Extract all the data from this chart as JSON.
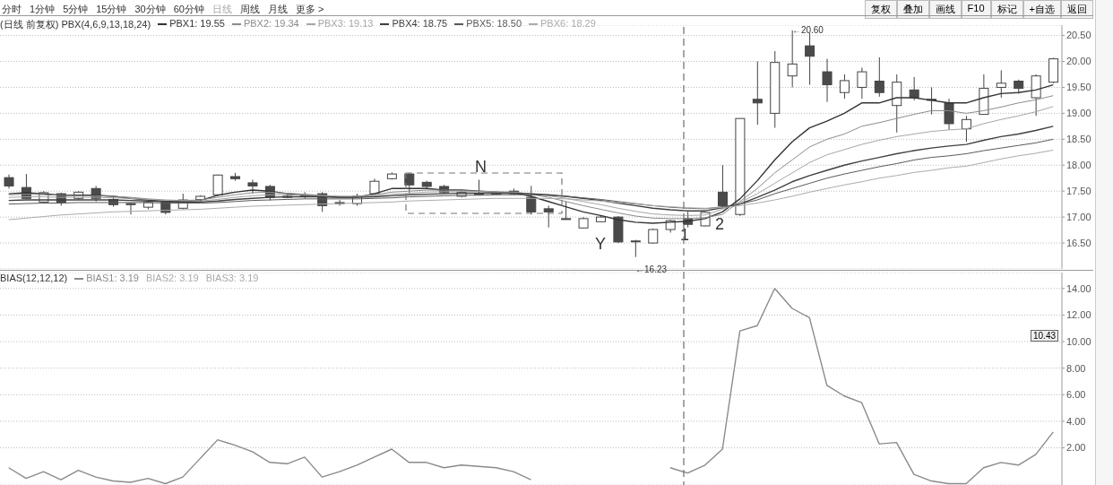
{
  "chart_data": [
    {
      "type": "candlestick",
      "title": "(日线 前复权) PBX(4,6,9,13,18,24)",
      "categories": [
        null,
        null,
        null,
        null,
        null,
        null,
        null,
        null,
        null,
        null,
        null,
        null,
        null,
        null,
        null,
        null,
        null,
        null,
        null,
        null,
        null,
        null,
        null,
        null,
        null,
        null,
        null,
        null,
        null,
        null,
        null,
        null,
        null,
        null,
        null,
        null,
        null,
        null,
        null,
        null,
        null,
        null,
        null,
        null,
        null,
        null,
        null,
        null,
        null,
        null,
        null,
        null,
        null,
        null,
        null,
        null,
        null,
        null,
        null,
        null,
        null
      ],
      "ohlc": [
        [
          17.76,
          17.82,
          17.55,
          17.6
        ],
        [
          17.57,
          17.83,
          17.36,
          17.36
        ],
        [
          17.29,
          17.5,
          17.26,
          17.47
        ],
        [
          17.45,
          17.47,
          17.22,
          17.28
        ],
        [
          17.36,
          17.5,
          17.33,
          17.48
        ],
        [
          17.55,
          17.6,
          17.3,
          17.36
        ],
        [
          17.34,
          17.38,
          17.2,
          17.24
        ],
        [
          17.26,
          17.28,
          17.05,
          17.24
        ],
        [
          17.19,
          17.3,
          17.15,
          17.28
        ],
        [
          17.29,
          17.31,
          17.05,
          17.09
        ],
        [
          17.17,
          17.45,
          17.15,
          17.33
        ],
        [
          17.34,
          17.42,
          17.3,
          17.4
        ],
        [
          17.43,
          17.82,
          17.4,
          17.81
        ],
        [
          17.78,
          17.85,
          17.7,
          17.74
        ],
        [
          17.66,
          17.72,
          17.45,
          17.6
        ],
        [
          17.59,
          17.62,
          17.32,
          17.38
        ],
        [
          17.4,
          17.45,
          17.36,
          17.38
        ],
        [
          17.41,
          17.48,
          17.36,
          17.41
        ],
        [
          17.45,
          17.48,
          17.1,
          17.22
        ],
        [
          17.28,
          17.33,
          17.22,
          17.26
        ],
        [
          17.26,
          17.45,
          17.22,
          17.4
        ],
        [
          17.45,
          17.74,
          17.43,
          17.69
        ],
        [
          17.74,
          17.86,
          17.72,
          17.83
        ],
        [
          17.83,
          17.85,
          17.45,
          17.62
        ],
        [
          17.67,
          17.7,
          17.55,
          17.59
        ],
        [
          17.59,
          17.62,
          17.45,
          17.47
        ],
        [
          17.4,
          17.5,
          17.38,
          17.48
        ],
        [
          17.45,
          17.72,
          17.43,
          17.45
        ],
        [
          17.44,
          17.5,
          17.42,
          17.47
        ],
        [
          17.5,
          17.55,
          17.43,
          17.45
        ],
        [
          17.38,
          17.6,
          17.05,
          17.1
        ],
        [
          17.16,
          17.22,
          16.8,
          17.1
        ],
        [
          16.97,
          17.3,
          16.95,
          16.97
        ],
        [
          16.79,
          17.0,
          16.78,
          16.97
        ],
        [
          16.91,
          17.02,
          16.9,
          17.0
        ],
        [
          17.0,
          17.02,
          16.5,
          16.52
        ],
        [
          16.54,
          16.56,
          16.23,
          16.54
        ],
        [
          16.5,
          16.78,
          16.49,
          16.76
        ],
        [
          16.76,
          16.95,
          16.7,
          16.93
        ],
        [
          16.97,
          17.1,
          16.8,
          16.86
        ],
        [
          16.83,
          17.1,
          16.82,
          17.09
        ],
        [
          17.48,
          18.0,
          17.2,
          17.22
        ],
        [
          17.05,
          18.9,
          17.02,
          18.9
        ],
        [
          19.27,
          20.0,
          18.78,
          19.2
        ],
        [
          19.0,
          20.2,
          18.72,
          19.98
        ],
        [
          19.72,
          20.6,
          19.5,
          19.95
        ],
        [
          20.3,
          20.55,
          19.55,
          20.1
        ],
        [
          19.8,
          20.05,
          19.22,
          19.55
        ],
        [
          19.4,
          19.75,
          19.28,
          19.63
        ],
        [
          19.5,
          19.88,
          19.28,
          19.8
        ],
        [
          19.62,
          20.08,
          19.32,
          19.4
        ],
        [
          19.15,
          19.75,
          18.63,
          19.6
        ],
        [
          19.45,
          19.7,
          19.25,
          19.3
        ],
        [
          19.27,
          19.5,
          18.98,
          19.25
        ],
        [
          19.2,
          19.28,
          18.68,
          18.8
        ],
        [
          18.7,
          18.95,
          18.45,
          18.88
        ],
        [
          18.98,
          19.75,
          18.98,
          19.48
        ],
        [
          19.5,
          19.83,
          19.3,
          19.58
        ],
        [
          19.62,
          19.65,
          19.38,
          19.48
        ],
        [
          19.3,
          19.75,
          18.95,
          19.72
        ],
        [
          19.6,
          20.07,
          19.58,
          20.05
        ]
      ],
      "series": [
        {
          "name": "PBX1: 19.55",
          "type": "line",
          "color": "#333333",
          "values": [
            17.45,
            17.47,
            17.45,
            17.42,
            17.42,
            17.42,
            17.4,
            17.36,
            17.33,
            17.3,
            17.3,
            17.32,
            17.42,
            17.48,
            17.52,
            17.5,
            17.45,
            17.42,
            17.4,
            17.38,
            17.38,
            17.45,
            17.55,
            17.55,
            17.55,
            17.52,
            17.52,
            17.5,
            17.48,
            17.47,
            17.4,
            17.3,
            17.2,
            17.1,
            17.03,
            16.95,
            16.9,
            16.88,
            16.9,
            16.92,
            16.97,
            17.1,
            17.35,
            17.7,
            18.1,
            18.45,
            18.72,
            18.85,
            19.0,
            19.2,
            19.2,
            19.3,
            19.3,
            19.25,
            19.2,
            19.2,
            19.3,
            19.38,
            19.4,
            19.45,
            19.55
          ]
        },
        {
          "name": "PBX2: 19.34",
          "type": "line",
          "color": "#8c8c8c",
          "values": [
            17.43,
            17.44,
            17.43,
            17.42,
            17.41,
            17.41,
            17.4,
            17.38,
            17.35,
            17.33,
            17.32,
            17.33,
            17.38,
            17.43,
            17.47,
            17.48,
            17.46,
            17.44,
            17.42,
            17.4,
            17.4,
            17.43,
            17.48,
            17.5,
            17.52,
            17.52,
            17.51,
            17.5,
            17.49,
            17.48,
            17.44,
            17.38,
            17.3,
            17.22,
            17.15,
            17.08,
            17.02,
            16.98,
            16.97,
            16.97,
            16.99,
            17.05,
            17.3,
            17.55,
            17.85,
            18.1,
            18.35,
            18.5,
            18.6,
            18.75,
            18.82,
            18.9,
            18.98,
            19.05,
            19.05,
            19.0,
            19.05,
            19.12,
            19.2,
            19.26,
            19.34
          ]
        },
        {
          "name": "PBX3: 19.13",
          "type": "line",
          "color": "#a6a6a6",
          "values": [
            17.38,
            17.39,
            17.39,
            17.38,
            17.38,
            17.38,
            17.37,
            17.36,
            17.34,
            17.32,
            17.31,
            17.31,
            17.34,
            17.38,
            17.41,
            17.43,
            17.43,
            17.42,
            17.41,
            17.4,
            17.39,
            17.41,
            17.44,
            17.46,
            17.48,
            17.49,
            17.49,
            17.49,
            17.48,
            17.48,
            17.45,
            17.41,
            17.36,
            17.3,
            17.24,
            17.17,
            17.11,
            17.06,
            17.04,
            17.03,
            17.04,
            17.15,
            17.28,
            17.45,
            17.65,
            17.85,
            18.05,
            18.2,
            18.3,
            18.4,
            18.48,
            18.55,
            18.6,
            18.65,
            18.68,
            18.7,
            18.8,
            18.88,
            18.95,
            19.03,
            19.13
          ]
        },
        {
          "name": "PBX4: 18.75",
          "type": "line",
          "color": "#404040",
          "values": [
            17.32,
            17.33,
            17.33,
            17.33,
            17.33,
            17.33,
            17.33,
            17.32,
            17.31,
            17.3,
            17.29,
            17.29,
            17.31,
            17.34,
            17.36,
            17.38,
            17.39,
            17.39,
            17.39,
            17.38,
            17.38,
            17.39,
            17.41,
            17.43,
            17.44,
            17.45,
            17.46,
            17.46,
            17.46,
            17.46,
            17.45,
            17.43,
            17.4,
            17.36,
            17.32,
            17.27,
            17.22,
            17.17,
            17.14,
            17.12,
            17.12,
            17.18,
            17.25,
            17.38,
            17.52,
            17.68,
            17.8,
            17.9,
            18.0,
            18.08,
            18.15,
            18.22,
            18.28,
            18.33,
            18.37,
            18.4,
            18.48,
            18.55,
            18.6,
            18.67,
            18.75
          ]
        },
        {
          "name": "PBX5: 18.50",
          "type": "line",
          "color": "#5a5a5a",
          "values": [
            17.25,
            17.26,
            17.27,
            17.27,
            17.28,
            17.28,
            17.28,
            17.28,
            17.28,
            17.27,
            17.27,
            17.27,
            17.28,
            17.3,
            17.32,
            17.33,
            17.34,
            17.35,
            17.35,
            17.35,
            17.35,
            17.36,
            17.37,
            17.39,
            17.4,
            17.41,
            17.42,
            17.42,
            17.43,
            17.43,
            17.43,
            17.42,
            17.4,
            17.37,
            17.34,
            17.3,
            17.26,
            17.22,
            17.19,
            17.17,
            17.16,
            17.2,
            17.25,
            17.33,
            17.45,
            17.55,
            17.65,
            17.75,
            17.83,
            17.9,
            17.97,
            18.03,
            18.1,
            18.15,
            18.18,
            18.22,
            18.28,
            18.33,
            18.38,
            18.43,
            18.5
          ]
        },
        {
          "name": "PBX6: 18.29",
          "type": "line",
          "color": "#ababab",
          "values": [
            16.95,
            16.98,
            17.01,
            17.04,
            17.06,
            17.08,
            17.1,
            17.11,
            17.12,
            17.13,
            17.14,
            17.15,
            17.17,
            17.19,
            17.21,
            17.22,
            17.23,
            17.24,
            17.25,
            17.26,
            17.27,
            17.28,
            17.29,
            17.31,
            17.32,
            17.33,
            17.34,
            17.35,
            17.36,
            17.36,
            17.36,
            17.36,
            17.35,
            17.33,
            17.31,
            17.28,
            17.25,
            17.22,
            17.2,
            17.18,
            17.17,
            17.18,
            17.22,
            17.27,
            17.33,
            17.4,
            17.48,
            17.55,
            17.62,
            17.68,
            17.75,
            17.8,
            17.86,
            17.9,
            17.95,
            17.98,
            18.05,
            18.12,
            18.18,
            18.23,
            18.29
          ]
        }
      ],
      "colors": [
        "#4a4a4a",
        "#4a4a4a",
        "#ffffff",
        "#4a4a4a",
        "#ffffff",
        "#4a4a4a",
        "#4a4a4a",
        "#4a4a4a",
        "#ffffff",
        "#4a4a4a",
        "#ffffff",
        "#ffffff",
        "#ffffff",
        "#4a4a4a",
        "#4a4a4a",
        "#4a4a4a",
        "#4a4a4a",
        "#ffffff",
        "#4a4a4a",
        "#4a4a4a",
        "#ffffff",
        "#ffffff",
        "#ffffff",
        "#4a4a4a",
        "#4a4a4a",
        "#4a4a4a",
        "#ffffff",
        "#ffffff",
        "#ffffff",
        "#4a4a4a",
        "#4a4a4a",
        "#4a4a4a",
        "#ffffff",
        "#ffffff",
        "#ffffff",
        "#4a4a4a",
        "#ffffff",
        "#ffffff",
        "#ffffff",
        "#4a4a4a",
        "#ffffff",
        "#4a4a4a",
        "#ffffff",
        "#4a4a4a",
        "#ffffff",
        "#ffffff",
        "#4a4a4a",
        "#4a4a4a",
        "#ffffff",
        "#ffffff",
        "#4a4a4a",
        "#ffffff",
        "#4a4a4a",
        "#4a4a4a",
        "#4a4a4a",
        "#ffffff",
        "#ffffff",
        "#ffffff",
        "#4a4a4a",
        "#ffffff",
        "#ffffff"
      ],
      "ylim": [
        16.0,
        20.7
      ],
      "yticks": [
        {
          "value": 16.5,
          "label": "16.50"
        },
        {
          "value": 17,
          "label": "17.00"
        },
        {
          "value": 17.5,
          "label": "17.50"
        },
        {
          "value": 18,
          "label": "18.00"
        },
        {
          "value": 18.5,
          "label": "18.50"
        },
        {
          "value": 19,
          "label": "19.00"
        },
        {
          "value": 19.5,
          "label": "19.50"
        },
        {
          "value": 20,
          "label": "20.00"
        },
        {
          "value": 20.5,
          "label": "20.50"
        }
      ],
      "grid": "y",
      "legend": "top",
      "tick_labels": "y",
      "annotations": [
        "分时",
        "1分钟",
        "5分钟",
        "15分钟",
        "30分钟",
        "60分钟",
        "日线",
        "周线",
        "月线",
        "更多 >",
        "复权",
        "叠加",
        "画线",
        "F10",
        "标记",
        "+自选",
        "返回",
        "N",
        "Y",
        "1",
        "2",
        "←16.23",
        "←20.60"
      ]
    },
    {
      "type": "line",
      "title": "BIAS(12,12,12)",
      "categories": [
        null,
        null,
        null,
        null,
        null,
        null,
        null,
        null,
        null,
        null,
        null,
        null,
        null,
        null,
        null,
        null,
        null,
        null,
        null,
        null,
        null,
        null,
        null,
        null,
        null,
        null,
        null,
        null,
        null,
        null,
        null,
        null,
        null,
        null,
        null,
        null,
        null,
        null,
        null,
        null,
        null,
        null,
        null,
        null,
        null,
        null,
        null,
        null,
        null,
        null,
        null,
        null,
        null,
        null,
        null,
        null,
        null,
        null,
        null,
        null,
        null
      ],
      "series": [
        {
          "name": "BIAS1: 3.19",
          "color": "#8a8a8a",
          "values": [
            0.5,
            -0.3,
            0.2,
            -0.4,
            0.3,
            -0.2,
            -0.5,
            -0.6,
            -0.3,
            -0.7,
            -0.2,
            1.2,
            2.6,
            2.2,
            1.7,
            0.9,
            0.8,
            1.3,
            -0.2,
            0.2,
            0.7,
            1.3,
            1.9,
            0.9,
            0.9,
            0.5,
            0.7,
            0.6,
            0.5,
            0.2,
            -0.4,
            null,
            null,
            null,
            null,
            null,
            null,
            null,
            0.5,
            0.1,
            0.7,
            1.9,
            10.8,
            11.2,
            14.0,
            12.5,
            11.8,
            6.7,
            5.9,
            5.4,
            2.3,
            2.4,
            0.0,
            -0.5,
            -0.7,
            -0.7,
            0.5,
            0.9,
            0.7,
            1.5,
            3.19
          ]
        }
      ],
      "ylim": [
        -0.8,
        15.2
      ],
      "yticks": [
        {
          "value": 2,
          "label": "2.00"
        },
        {
          "value": 4,
          "label": "4.00"
        },
        {
          "value": 6,
          "label": "6.00"
        },
        {
          "value": 8,
          "label": "8.00"
        },
        {
          "value": 10,
          "label": "10.00"
        },
        {
          "value": 12,
          "label": "12.00"
        },
        {
          "value": 14,
          "label": "14.00"
        }
      ],
      "grid": "y",
      "legend": "top",
      "tick_labels": "y",
      "annotations": [
        "BIAS2: 3.19",
        "BIAS3: 3.19",
        {
          "text": "10.43",
          "y": 10.43
        }
      ]
    }
  ]
}
